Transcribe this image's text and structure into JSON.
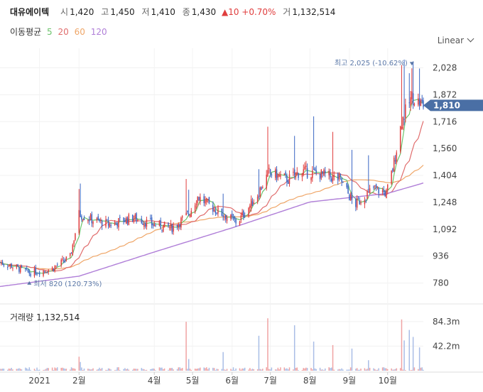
{
  "header": {
    "name": "대유에이텍",
    "open_label": "시",
    "open": "1,420",
    "high_label": "고",
    "high": "1,450",
    "low_label": "저",
    "low": "1,410",
    "close_label": "종",
    "close": "1,430",
    "change": "▲10 +0.70%",
    "volume_label": "거",
    "volume": "1,132,514"
  },
  "ma_legend": {
    "title": "이동평균",
    "p5": "5",
    "p20": "20",
    "p60": "60",
    "p120": "120"
  },
  "scale_mode": "Linear",
  "colors": {
    "up": "#e03e3e",
    "down": "#3a66c4",
    "ma5": "#6cc36c",
    "ma20": "#e06c6c",
    "ma60": "#efa668",
    "ma120": "#b07fd8",
    "price_tag": "#4a6fa5",
    "annotation": "#5b78a8"
  },
  "chart_data": {
    "type": "candlestick",
    "x_range": [
      "2020-12-01",
      "2021-10-29"
    ],
    "y_range": [
      700,
      2100
    ],
    "y_ticks": [
      "2,028",
      "1,872",
      "1,716",
      "1,560",
      "1,404",
      "1,248",
      "1,092",
      "936",
      "780"
    ],
    "x_ticks": [
      "2021",
      "2월",
      "4월",
      "5월",
      "6월",
      "7월",
      "8월",
      "9월",
      "10월"
    ],
    "current_price": "1,810",
    "current_price_value": 1810,
    "high_annotation": "최고 2,025 (-10.62%)",
    "high_point": {
      "date": "2021-10-20",
      "value": 2025
    },
    "low_annotation": "최저 820 (120.73%)",
    "low_point": {
      "date": "2020-12-24",
      "value": 820
    },
    "price_anchors": [
      [
        "2020-12-01",
        900
      ],
      [
        "2020-12-10",
        880
      ],
      [
        "2020-12-24",
        840
      ],
      [
        "2021-01-10",
        860
      ],
      [
        "2021-01-25",
        930
      ],
      [
        "2021-02-01",
        1180
      ],
      [
        "2021-02-10",
        1150
      ],
      [
        "2021-02-25",
        1120
      ],
      [
        "2021-03-15",
        1160
      ],
      [
        "2021-03-31",
        1120
      ],
      [
        "2021-04-15",
        1100
      ],
      [
        "2021-04-28",
        1180
      ],
      [
        "2021-05-05",
        1280
      ],
      [
        "2021-05-20",
        1200
      ],
      [
        "2021-06-05",
        1130
      ],
      [
        "2021-06-20",
        1280
      ],
      [
        "2021-06-30",
        1420
      ],
      [
        "2021-07-15",
        1380
      ],
      [
        "2021-07-25",
        1430
      ],
      [
        "2021-08-10",
        1410
      ],
      [
        "2021-08-25",
        1380
      ],
      [
        "2021-09-05",
        1230
      ],
      [
        "2021-09-20",
        1330
      ],
      [
        "2021-09-30",
        1300
      ],
      [
        "2021-10-05",
        1440
      ],
      [
        "2021-10-12",
        1720
      ],
      [
        "2021-10-20",
        1860
      ],
      [
        "2021-10-29",
        1810
      ]
    ],
    "ma120_anchors": [
      [
        "2020-12-01",
        760
      ],
      [
        "2021-02-01",
        820
      ],
      [
        "2021-04-01",
        960
      ],
      [
        "2021-06-01",
        1100
      ],
      [
        "2021-08-01",
        1250
      ],
      [
        "2021-10-01",
        1300
      ],
      [
        "2021-10-29",
        1360
      ]
    ],
    "volume_title": "거래량",
    "volume_value": "1,132,514",
    "volume_ticks": [
      "84.3m",
      "42.2m"
    ],
    "volume_range": [
      0,
      100
    ],
    "volume_spikes": [
      [
        "2021-02-01",
        24
      ],
      [
        "2021-02-02",
        15
      ],
      [
        "2021-04-26",
        84
      ],
      [
        "2021-04-28",
        20
      ],
      [
        "2021-05-25",
        32
      ],
      [
        "2021-06-22",
        60
      ],
      [
        "2021-06-29",
        90
      ],
      [
        "2021-07-20",
        78
      ],
      [
        "2021-08-04",
        50
      ],
      [
        "2021-08-19",
        44
      ],
      [
        "2021-09-03",
        38
      ],
      [
        "2021-09-16",
        18
      ],
      [
        "2021-10-12",
        88
      ],
      [
        "2021-10-14",
        52
      ],
      [
        "2021-10-18",
        70
      ],
      [
        "2021-10-21",
        58
      ],
      [
        "2021-10-26",
        40
      ]
    ]
  }
}
